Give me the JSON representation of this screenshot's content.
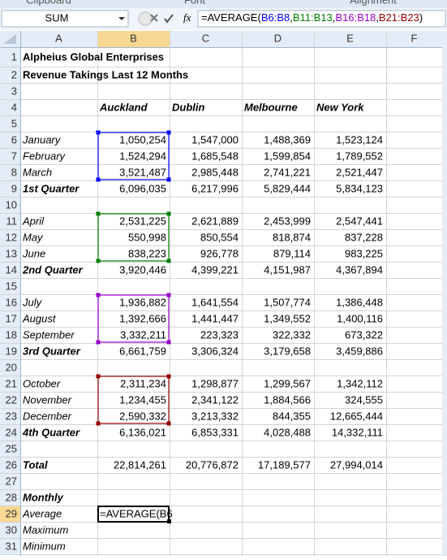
{
  "ribbon_groups": [
    "Clipboard",
    "Font",
    "Alignment"
  ],
  "formula_bar": {
    "name_box": "SUM",
    "fx": "fx",
    "formula": [
      {
        "text": "=AVERAGE(",
        "color": "#000000"
      },
      {
        "text": "B6:B8",
        "color": "#0000ff"
      },
      {
        "text": ",",
        "color": "#000000"
      },
      {
        "text": "B11:B13",
        "color": "#008000"
      },
      {
        "text": ",",
        "color": "#000000"
      },
      {
        "text": "B16:B18",
        "color": "#9900cc"
      },
      {
        "text": ",",
        "color": "#000000"
      },
      {
        "text": "B21:B23",
        "color": "#990000"
      },
      {
        "text": ")",
        "color": "#000000"
      }
    ]
  },
  "columns": [
    "A",
    "B",
    "C",
    "D",
    "E",
    "F"
  ],
  "rows": [
    {
      "number": "1",
      "cells": [
        "Alpheius Global Enterprises",
        null,
        null,
        null,
        null
      ]
    },
    {
      "number": "2",
      "cells": [
        "Revenue Takings Last 12 Months",
        null,
        null,
        null,
        null
      ]
    },
    {
      "number": "3"
    },
    {
      "number": "4",
      "cells": [
        null,
        "Auckland",
        "Dublin",
        "Melbourne",
        "New York"
      ]
    },
    {
      "number": "5"
    },
    {
      "number": "6",
      "cells": [
        "January",
        "1,050,254",
        "1,547,000",
        "1,488,369",
        "1,523,124"
      ]
    },
    {
      "number": "7",
      "cells": [
        "February",
        "1,524,294",
        "1,685,548",
        "1,599,854",
        "1,789,552"
      ]
    },
    {
      "number": "8",
      "cells": [
        "March",
        "3,521,487",
        "2,985,448",
        "2,741,221",
        "2,521,447"
      ]
    },
    {
      "number": "9",
      "cells": [
        "1st Quarter",
        "6,096,035",
        "6,217,996",
        "5,829,444",
        "5,834,123"
      ]
    },
    {
      "number": "10"
    },
    {
      "number": "11",
      "cells": [
        "April",
        "2,531,225",
        "2,621,889",
        "2,453,999",
        "2,547,441"
      ]
    },
    {
      "number": "12",
      "cells": [
        "May",
        "550,998",
        "850,554",
        "818,874",
        "837,228"
      ]
    },
    {
      "number": "13",
      "cells": [
        "June",
        "838,223",
        "926,778",
        "879,114",
        "983,225"
      ]
    },
    {
      "number": "14",
      "cells": [
        "2nd Quarter",
        "3,920,446",
        "4,399,221",
        "4,151,987",
        "4,367,894"
      ]
    },
    {
      "number": "15"
    },
    {
      "number": "16",
      "cells": [
        "July",
        "1,936,882",
        "1,641,554",
        "1,507,774",
        "1,386,448"
      ]
    },
    {
      "number": "17",
      "cells": [
        "August",
        "1,392,666",
        "1,441,447",
        "1,349,552",
        "1,400,116"
      ]
    },
    {
      "number": "18",
      "cells": [
        "September",
        "3,332,211",
        "223,323",
        "322,332",
        "673,322"
      ]
    },
    {
      "number": "19",
      "cells": [
        "3rd Quarter",
        "6,661,759",
        "3,306,324",
        "3,179,658",
        "3,459,886"
      ]
    },
    {
      "number": "20"
    },
    {
      "number": "21",
      "cells": [
        "October",
        "2,311,234",
        "1,298,877",
        "1,299,567",
        "1,342,112"
      ]
    },
    {
      "number": "22",
      "cells": [
        "November",
        "1,234,455",
        "2,341,122",
        "1,884,566",
        "324,555"
      ]
    },
    {
      "number": "23",
      "cells": [
        "December",
        "2,590,332",
        "3,213,332",
        "844,355",
        "12,665,444"
      ]
    },
    {
      "number": "24",
      "cells": [
        "4th Quarter",
        "6,136,021",
        "6,853,331",
        "4,028,488",
        "14,332,111"
      ]
    },
    {
      "number": "25"
    },
    {
      "number": "26",
      "cells": [
        "Total",
        "22,814,261",
        "20,776,872",
        "17,189,577",
        "27,994,014"
      ]
    },
    {
      "number": "27"
    },
    {
      "number": "28",
      "cells": [
        "Monthly",
        null,
        null,
        null,
        null
      ]
    },
    {
      "number": "29",
      "cells": [
        "Average",
        "=AVERAGE(B6",
        null,
        null,
        null
      ]
    },
    {
      "number": "30",
      "cells": [
        "Maximum",
        null,
        null,
        null,
        null
      ]
    },
    {
      "number": "31",
      "cells": [
        "Minimum",
        null,
        null,
        null,
        null
      ]
    }
  ]
}
